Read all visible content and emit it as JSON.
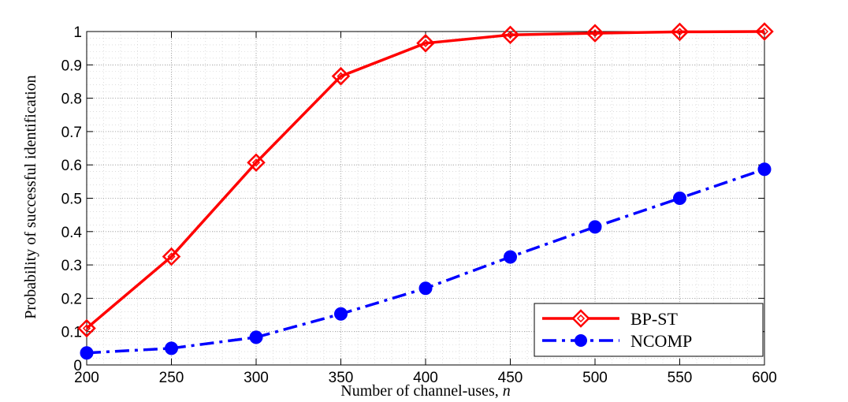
{
  "chart_data": {
    "type": "line",
    "title": "",
    "xlabel": "Number of channel-uses, ",
    "xlabel_var": "n",
    "ylabel": "Probability of successful identification",
    "xlim": [
      200,
      600
    ],
    "ylim": [
      0,
      1
    ],
    "xticks": [
      200,
      250,
      300,
      350,
      400,
      450,
      500,
      550,
      600
    ],
    "yticks": [
      0,
      0.1,
      0.2,
      0.3,
      0.4,
      0.5,
      0.6,
      0.7,
      0.8,
      0.9,
      1
    ],
    "ytick_labels": [
      "0",
      "0.1",
      "0.2",
      "0.3",
      "0.4",
      "0.5",
      "0.6",
      "0.7",
      "0.8",
      "0.9",
      "1"
    ],
    "grid": true,
    "legend_position": "bottom-right",
    "x": [
      200,
      250,
      300,
      350,
      400,
      450,
      500,
      550,
      600
    ],
    "series": [
      {
        "name": "BP-ST",
        "color": "#ff0000",
        "line_style": "solid",
        "marker": "diamond",
        "values": [
          0.11,
          0.325,
          0.607,
          0.866,
          0.965,
          0.99,
          0.995,
          0.999,
          1.0
        ]
      },
      {
        "name": "NCOMP",
        "color": "#0000ff",
        "line_style": "dashdot",
        "marker": "circle",
        "values": [
          0.036,
          0.05,
          0.083,
          0.153,
          0.23,
          0.324,
          0.414,
          0.5,
          0.587
        ]
      }
    ]
  }
}
